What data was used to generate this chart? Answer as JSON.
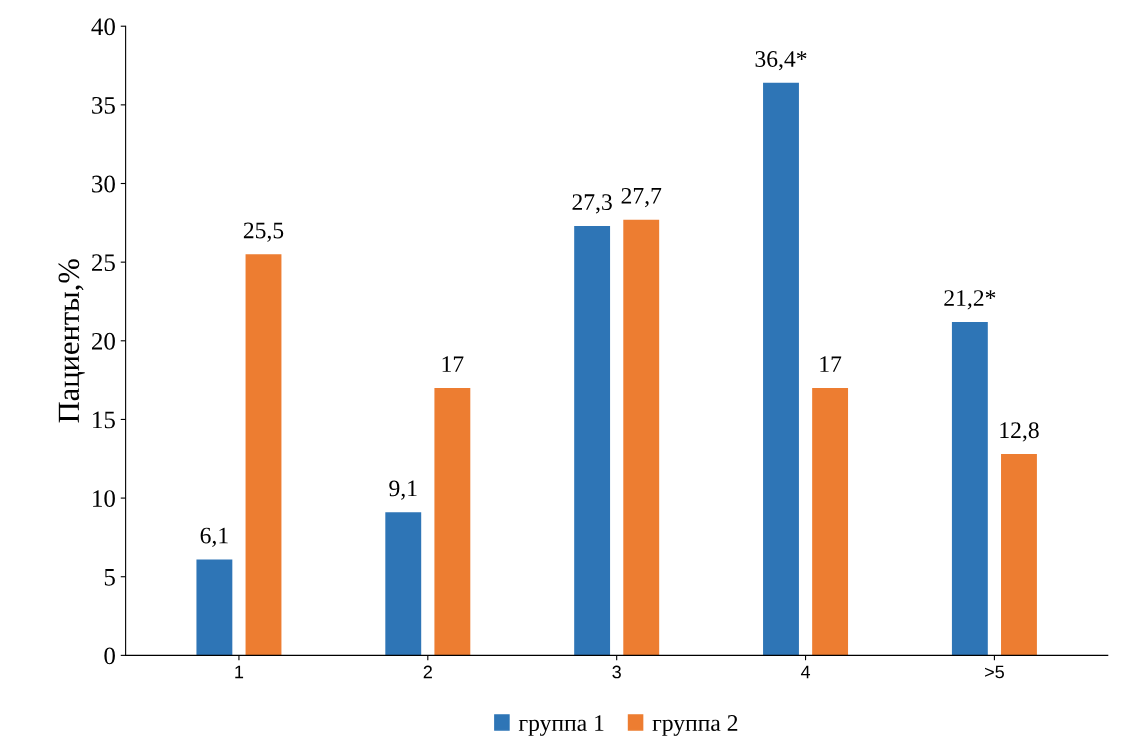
{
  "chart_data": {
    "type": "bar",
    "ylabel": "Пациенты,%",
    "categories": [
      "1",
      "2",
      "3",
      "4",
      ">5"
    ],
    "series": [
      {
        "name": "группа 1",
        "color": "#2e75b6",
        "values": [
          6.1,
          9.1,
          27.3,
          36.4,
          21.2
        ],
        "value_labels": [
          "6,1",
          "9,1",
          "27,3",
          "36,4*",
          "21,2*"
        ]
      },
      {
        "name": "группа 2",
        "color": "#ed7d31",
        "values": [
          25.5,
          17,
          27.7,
          17,
          12.8
        ],
        "value_labels": [
          "25,5",
          "17",
          "27,7",
          "17",
          "12,8"
        ]
      }
    ],
    "ylim": [
      0,
      40
    ],
    "yticks": [
      0,
      5,
      10,
      15,
      20,
      25,
      30,
      35,
      40
    ],
    "grid": false,
    "legend": "bottom"
  }
}
